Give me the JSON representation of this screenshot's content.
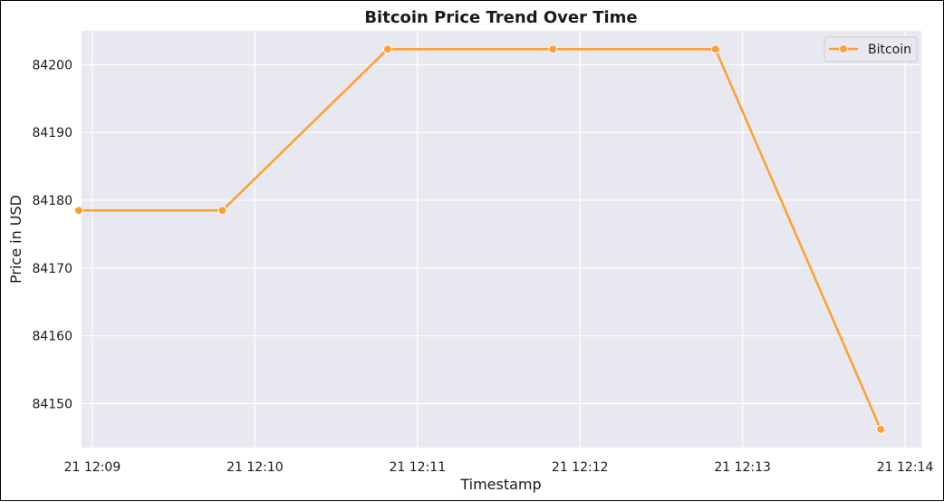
{
  "chart_data": {
    "type": "line",
    "title": "Bitcoin Price Trend Over Time",
    "xlabel": "Timestamp",
    "ylabel": "Price in USD",
    "x_ticks": [
      "21 12:09",
      "21 12:10",
      "21 12:11",
      "21 12:12",
      "21 12:13",
      "21 12:14"
    ],
    "y_ticks": [
      84150,
      84160,
      84170,
      84180,
      84190,
      84200
    ],
    "ylim": [
      84143.5,
      84205
    ],
    "xlim": [
      "12:08:56",
      "12:14:06"
    ],
    "grid": true,
    "legend_position": "top-right",
    "series": [
      {
        "name": "Bitcoin",
        "color": "#FF9F2D",
        "points": [
          {
            "time": "12:08:55",
            "value": 84178.5
          },
          {
            "time": "12:09:48",
            "value": 84178.5
          },
          {
            "time": "12:10:49",
            "value": 84202.3
          },
          {
            "time": "12:11:50",
            "value": 84202.3
          },
          {
            "time": "12:12:50",
            "value": 84202.3
          },
          {
            "time": "12:13:51",
            "value": 84146.2
          }
        ]
      }
    ]
  }
}
